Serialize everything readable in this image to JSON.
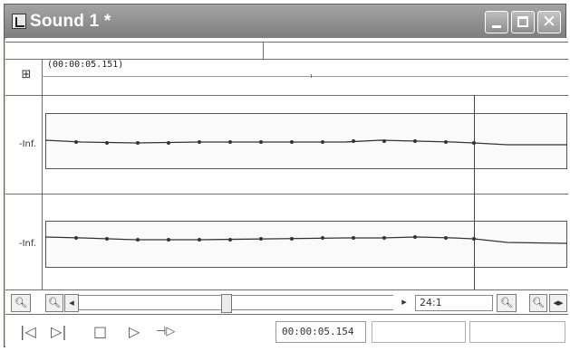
{
  "window": {
    "title": "Sound 1 *"
  },
  "timeline": {
    "position_label": "(00:00:05.151)"
  },
  "channels": [
    {
      "level_label": "-Inf."
    },
    {
      "level_label": "-Inf."
    }
  ],
  "toolbar": {
    "zoom_ratio": "24:1"
  },
  "transport": {
    "time_readout": "00:00:05.154"
  },
  "icons": {
    "ruler": "ruler-icon",
    "zoom_in": "zoom-in-icon",
    "zoom_out": "zoom-out-icon",
    "fit": "fit-width-icon",
    "go_start": "skip-to-start-icon",
    "go_end": "skip-to-end-icon",
    "stop": "stop-icon",
    "play": "play-icon",
    "loop": "loop-icon"
  },
  "colors": {
    "title_text": "#ffffff",
    "waveform": "#333333"
  }
}
